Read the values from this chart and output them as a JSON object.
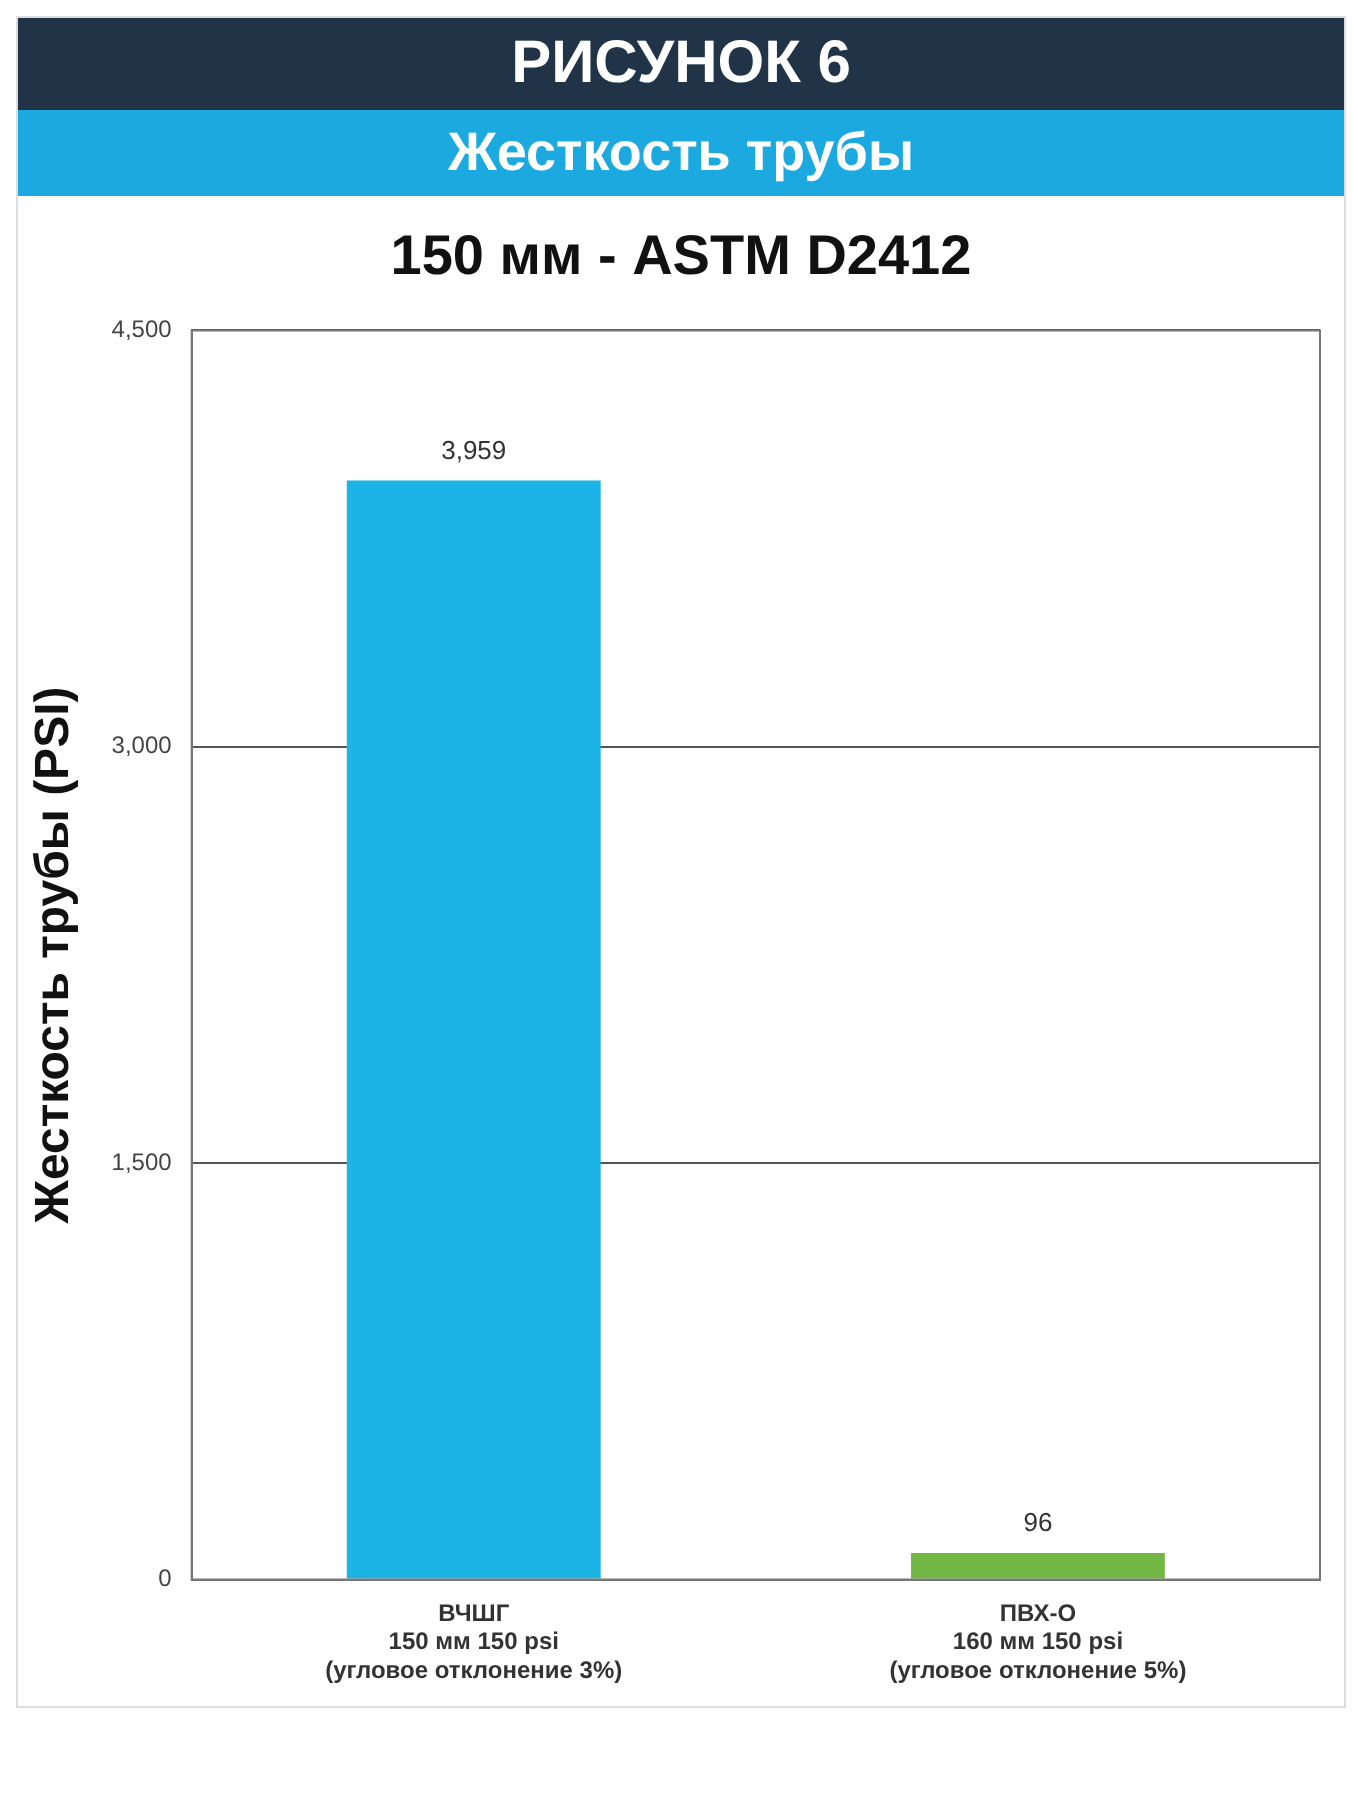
{
  "chart_data": {
    "type": "bar",
    "title": "РИСУНОК 6",
    "subtitle": "Жесткость трубы",
    "annotations": [
      "150 мм - ASTM D2412"
    ],
    "ylabel": "Жесткость трубы (PSI)",
    "categories": [
      "ВЧШГ\n150 мм 150 psi\n(угловое отклонение 3%)",
      "ПВХ-О\n160 мм 150 psi\n(угловое отклонение 5%)"
    ],
    "values": [
      3959,
      96
    ],
    "value_labels": [
      "3,959",
      "96"
    ],
    "colors": [
      "#1cb4e6",
      "#72b644"
    ],
    "ylim": [
      0,
      4500
    ],
    "yticks": [
      0,
      {
        "value": 1500,
        "label": "1,500"
      },
      {
        "value": 3000,
        "label": "3,000"
      },
      {
        "value": 4500,
        "label": "4,500"
      }
    ],
    "grid": "y",
    "legend": false
  }
}
